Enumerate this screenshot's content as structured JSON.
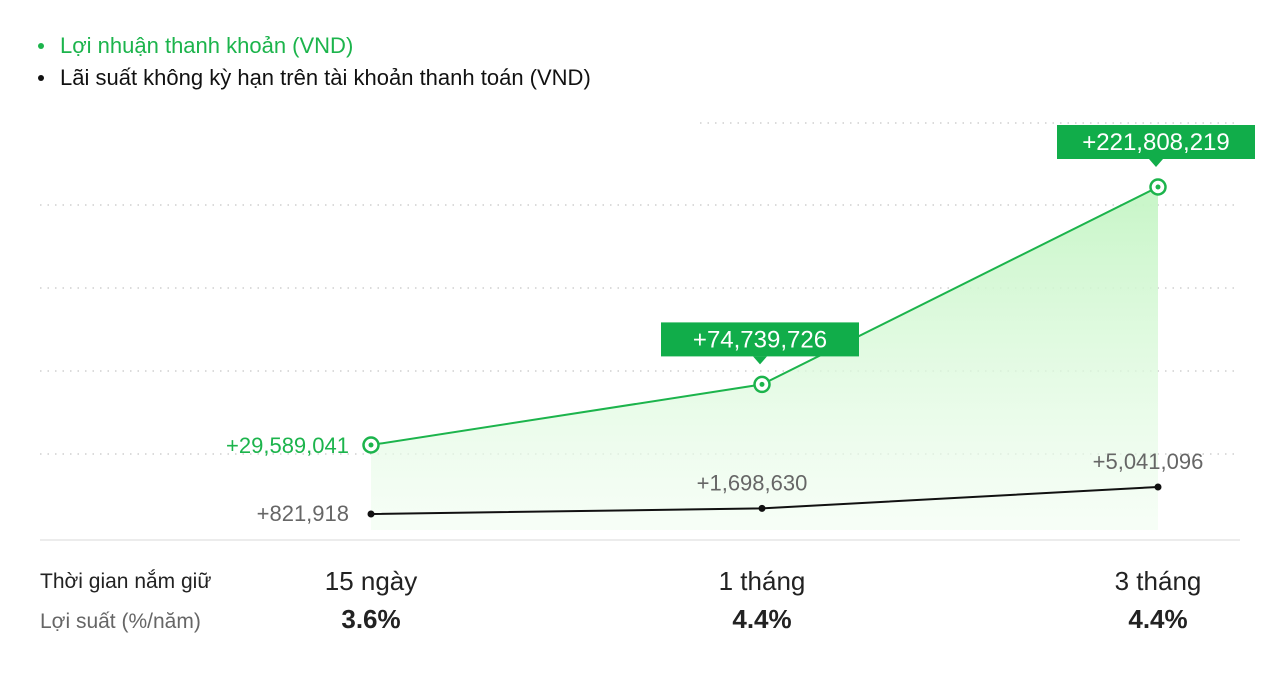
{
  "colors": {
    "green": "#1cb44c",
    "green_label_bg": "#11ad4a",
    "black": "#111111",
    "grid": "#cfcfcf",
    "muted_text": "#666666"
  },
  "legend": [
    {
      "label": "Lợi nhuận thanh khoản (VND)",
      "color": "#1cb44c"
    },
    {
      "label": "Lãi suất không kỳ hạn trên tài khoản thanh toán (VND)",
      "color": "#111111"
    }
  ],
  "chart_data": {
    "type": "area",
    "categories": [
      "15 ngày",
      "1 tháng",
      "3 tháng"
    ],
    "series": [
      {
        "name": "Lợi nhuận thanh khoản (VND)",
        "values": [
          29589041,
          74739726,
          221808219
        ],
        "labels": [
          "+29,589,041",
          "+74,739,726",
          "+221,808,219"
        ],
        "color": "#1cb44c"
      },
      {
        "name": "Lãi suất không kỳ hạn trên tài khoản thanh toán (VND)",
        "values": [
          821918,
          1698630,
          5041096
        ],
        "labels": [
          "+821,918",
          "+1,698,630",
          "+5,041,096"
        ],
        "color": "#111111"
      }
    ],
    "grid": true,
    "legend_position": "top-left"
  },
  "table": {
    "rows": [
      {
        "label": "Thời gian nắm giữ",
        "values": [
          "15 ngày",
          "1 tháng",
          "3 tháng"
        ]
      },
      {
        "label": "Lợi suất (%/năm)",
        "values": [
          "3.6%",
          "4.4%",
          "4.4%"
        ]
      }
    ]
  }
}
